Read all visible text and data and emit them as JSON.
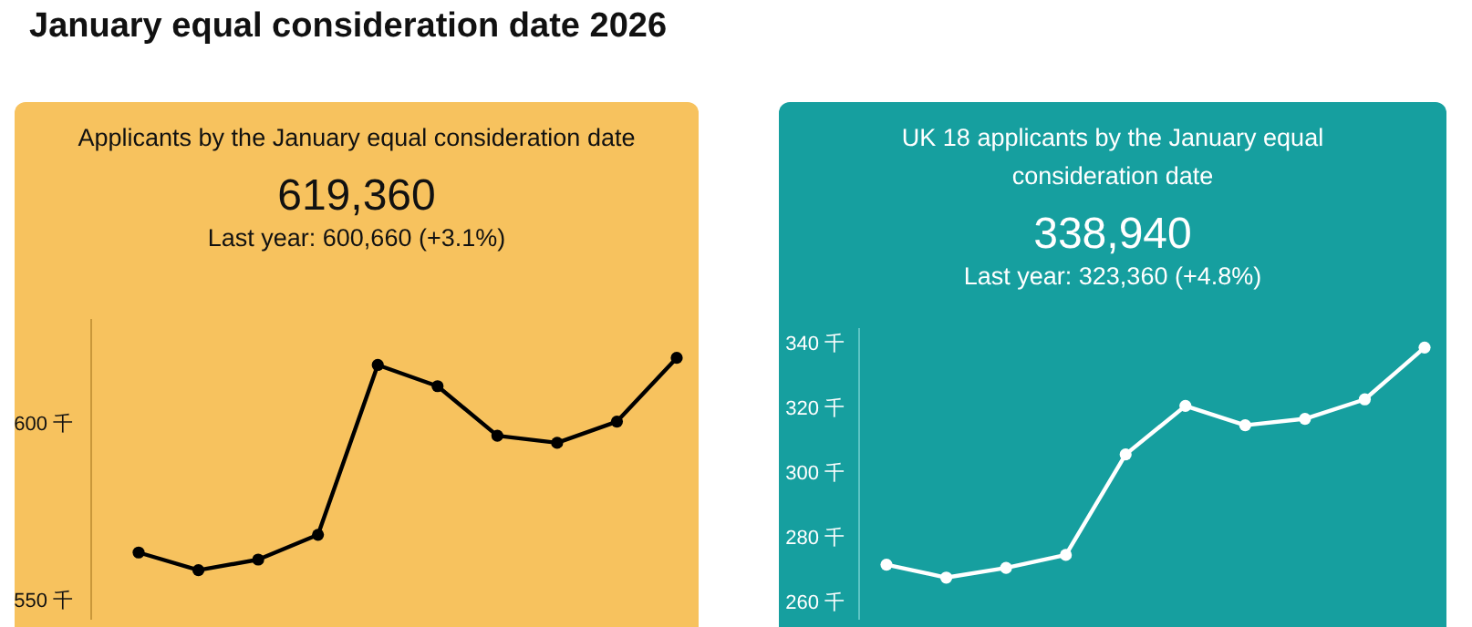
{
  "chart_data": [
    {
      "type": "line",
      "title": "January equal consideration date 2026",
      "subtitle": "Applicants by the January equal consideration date",
      "annotations": [
        "619,360",
        "Last year: 600,660 (+3.1%)"
      ],
      "categories": [
        null,
        null,
        null,
        null,
        null,
        null,
        null,
        null,
        null,
        null
      ],
      "series": [
        {
          "color": "#000000",
          "values": [
            564,
            559,
            562,
            569,
            617,
            611,
            597,
            595,
            601,
            619
          ]
        }
      ],
      "ylim": [
        545,
        630
      ],
      "yticks": [
        {
          "value": 550,
          "label": "550 千"
        },
        {
          "value": 600,
          "label": "600 千"
        }
      ],
      "grid": false,
      "marker": "circle",
      "line_style": "solid"
    },
    {
      "type": "line",
      "subtitle": "UK 18 applicants by the January equal consideration date",
      "annotations": [
        "338,940",
        "Last year: 323,360 (+4.8%)"
      ],
      "categories": [
        null,
        null,
        null,
        null,
        null,
        null,
        null,
        null,
        null,
        null
      ],
      "series": [
        {
          "color": "#ffffff",
          "values": [
            272,
            268,
            271,
            275,
            306,
            321,
            315,
            317,
            323,
            339
          ]
        }
      ],
      "ylim": [
        255,
        345
      ],
      "yticks": [
        {
          "value": 260,
          "label": "260 千"
        },
        {
          "value": 280,
          "label": "280 千"
        },
        {
          "value": 300,
          "label": "300 千"
        },
        {
          "value": 320,
          "label": "320 千"
        },
        {
          "value": 340,
          "label": "340 千"
        }
      ],
      "grid": false,
      "marker": "circle",
      "line_style": "solid"
    }
  ]
}
